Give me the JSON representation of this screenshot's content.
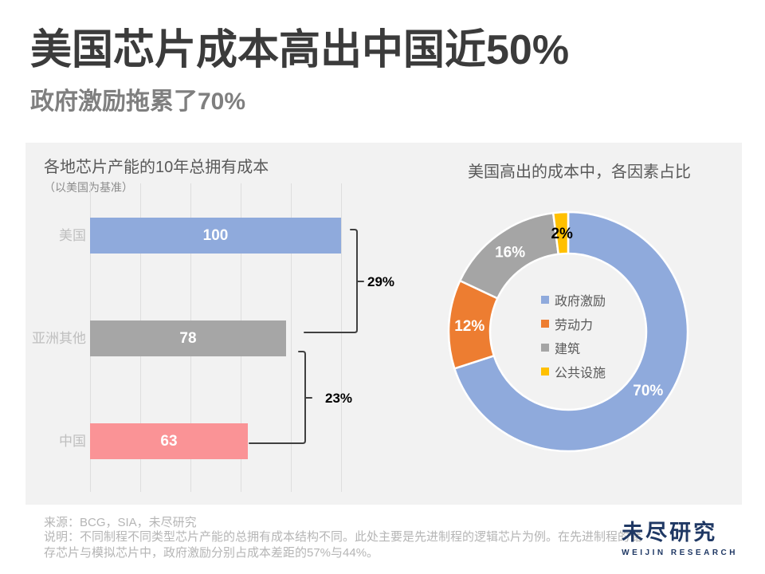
{
  "page": {
    "title": "美国芯片成本高出中国近50%",
    "subtitle": "政府激励拖累了70%"
  },
  "colors": {
    "accent_blue": "#8FAADC",
    "accent_orange": "#ED7D31",
    "accent_gray": "#A6A6A6",
    "accent_yellow": "#FFC000",
    "accent_pink": "#FA9396",
    "panel_bg": "#F2F2F2",
    "logo_navy": "#1F3864"
  },
  "chart_data": [
    {
      "type": "bar",
      "orientation": "horizontal",
      "title": "各地芯片产能的10年总拥有成本",
      "subtitle": "（以美国为基准）",
      "categories": [
        "美国",
        "亚洲其他",
        "中国"
      ],
      "values": [
        100,
        78,
        63
      ],
      "bar_colors": [
        "#8FAADC",
        "#A6A6A6",
        "#FA9396"
      ],
      "xlim": [
        0,
        100
      ],
      "gridline_step": 20,
      "grid": "vertical-lines",
      "comparisons": [
        {
          "between": [
            "美国",
            "亚洲其他"
          ],
          "label": "29%"
        },
        {
          "between": [
            "亚洲其他",
            "中国"
          ],
          "label": "23%"
        }
      ]
    },
    {
      "type": "donut",
      "title": "美国高出的成本中，各因素占比",
      "start_angle_deg": 0,
      "direction": "clockwise",
      "legend_position": "center",
      "slices": [
        {
          "name": "政府激励",
          "value": 70,
          "label": "70%",
          "color": "#8FAADC",
          "label_color": "#FFFFFF"
        },
        {
          "name": "劳动力",
          "value": 12,
          "label": "12%",
          "color": "#ED7D31",
          "label_color": "#FFFFFF"
        },
        {
          "name": "建筑",
          "value": 16,
          "label": "16%",
          "color": "#A5A5A5",
          "label_color": "#FFFFFF"
        },
        {
          "name": "公共设施",
          "value": 2,
          "label": "2%",
          "color": "#FFC000",
          "label_color": "#000000"
        }
      ]
    }
  ],
  "footer": {
    "source": "来源：BCG，SIA，未尽研究",
    "note": "说明：不同制程不同类型芯片产能的总拥有成本结构不同。此处主要是先进制程的逻辑芯片为例。在先进制程的储存芯片与模拟芯片中，政府激励分别占成本差距的57%与44%。",
    "logo_cn": "未尽研究",
    "logo_en": "WEIJIN RESEARCH"
  }
}
